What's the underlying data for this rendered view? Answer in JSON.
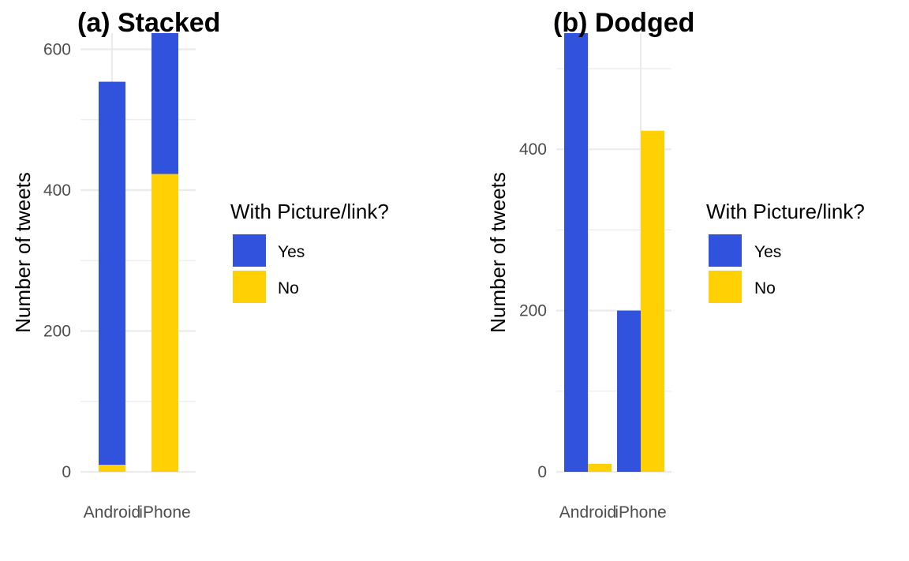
{
  "chart_data": [
    {
      "type": "bar",
      "subtype": "stacked",
      "title": "(a) Stacked",
      "xlabel": "",
      "ylabel": "Number of tweets",
      "categories": [
        "Android",
        "iPhone"
      ],
      "series": [
        {
          "name": "Yes",
          "values": [
            544,
            200
          ]
        },
        {
          "name": "No",
          "values": [
            10,
            423
          ]
        }
      ],
      "ylim": [
        0,
        623
      ],
      "yticks": [
        0,
        200,
        400,
        600
      ],
      "legend": {
        "title": "With Picture/link?",
        "position": "right"
      },
      "grid": true
    },
    {
      "type": "bar",
      "subtype": "dodged",
      "title": "(b) Dodged",
      "xlabel": "",
      "ylabel": "Number of tweets",
      "categories": [
        "Android",
        "iPhone"
      ],
      "series": [
        {
          "name": "Yes",
          "values": [
            544,
            200
          ]
        },
        {
          "name": "No",
          "values": [
            10,
            423
          ]
        }
      ],
      "ylim": [
        0,
        544
      ],
      "yticks": [
        0,
        200,
        400
      ],
      "legend": {
        "title": "With Picture/link?",
        "position": "right"
      },
      "grid": true
    }
  ],
  "colors": {
    "Yes": "#3152dc",
    "No": "#ffd104",
    "grid": "#ebebeb"
  }
}
